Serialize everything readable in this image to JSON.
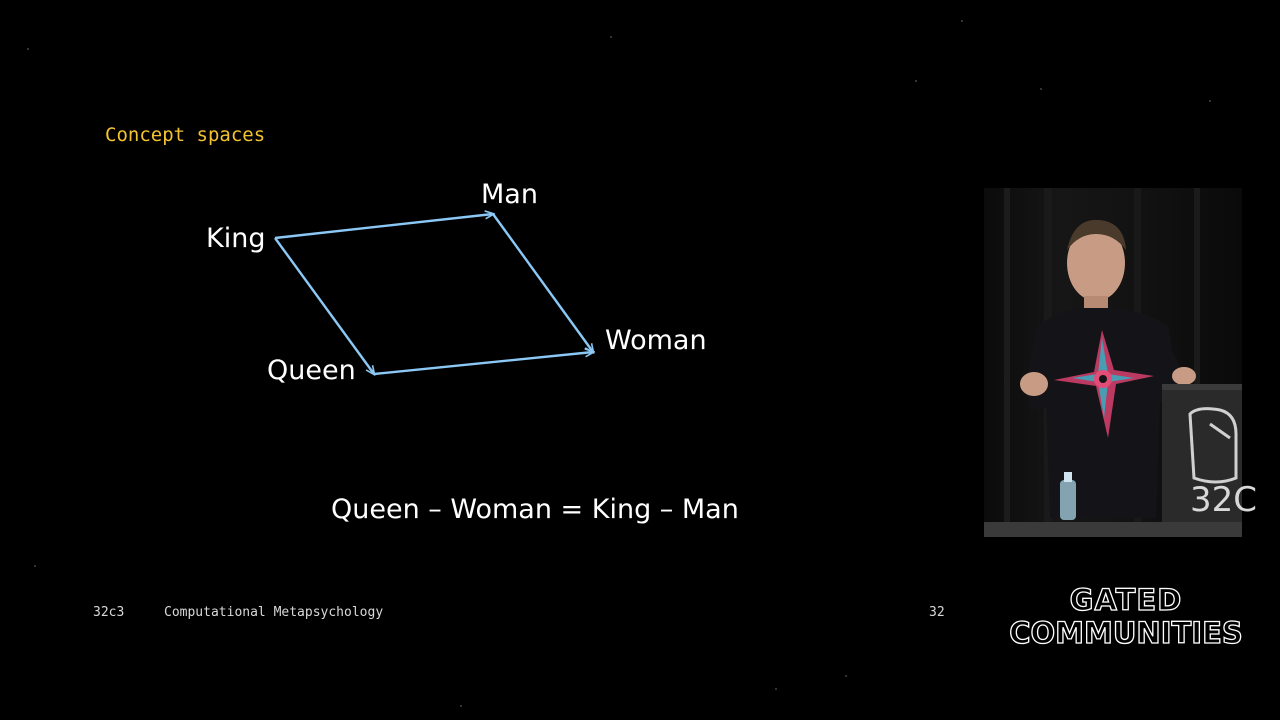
{
  "slide": {
    "title": "Concept spaces",
    "diagram": {
      "nodes": {
        "king": "King",
        "man": "Man",
        "queen": "Queen",
        "woman": "Woman"
      },
      "arrow_color": "#8cc8f5"
    },
    "equation": "Queen – Woman = King – Man",
    "footer": {
      "event": "32c3",
      "talk_title": "Computational Metapsychology",
      "page_number": "32"
    }
  },
  "overlay": {
    "logo": {
      "line1": "GATED",
      "line2": "COMMUNITIES"
    },
    "podium_mark": "32C"
  },
  "colors": {
    "background": "#000000",
    "title": "#f2c230",
    "text": "#ffffff",
    "footer_text": "#d8d8d8"
  }
}
